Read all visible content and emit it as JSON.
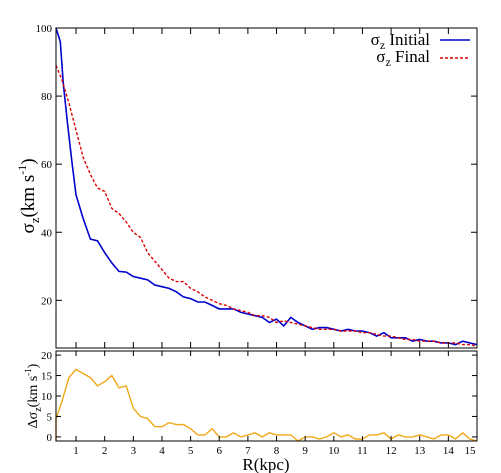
{
  "chart_data": [
    {
      "type": "line",
      "panel": "top",
      "ylabel_main": "σ",
      "ylabel_sub": "z",
      "ylabel_unit": "(km s",
      "ylabel_exp": "-1",
      "ylabel_close": ")",
      "xlim": [
        0.3,
        15
      ],
      "ylim": [
        6,
        100
      ],
      "yticks": [
        20,
        40,
        60,
        80,
        100
      ],
      "xticks": [
        1,
        2,
        3,
        4,
        5,
        6,
        7,
        8,
        9,
        10,
        11,
        12,
        13,
        14,
        15
      ],
      "legend_position": "top-right",
      "series": [
        {
          "name_main": "σ",
          "name_sub": "z",
          "name_rest": " Initial",
          "color": "#0000cc",
          "dash": "none",
          "x": [
            0.3,
            0.45,
            0.55,
            0.7,
            0.85,
            1.0,
            1.25,
            1.5,
            1.75,
            2.0,
            2.25,
            2.5,
            2.75,
            3.0,
            3.25,
            3.5,
            3.75,
            4.0,
            4.25,
            4.5,
            4.75,
            5.0,
            5.25,
            5.5,
            5.75,
            6.0,
            6.25,
            6.5,
            6.75,
            7.0,
            7.25,
            7.5,
            7.75,
            8.0,
            8.25,
            8.5,
            8.75,
            9.0,
            9.25,
            9.5,
            9.75,
            10.0,
            10.25,
            10.5,
            10.75,
            11.0,
            11.25,
            11.5,
            11.75,
            12.0,
            12.25,
            12.5,
            12.75,
            13.0,
            13.25,
            13.5,
            13.75,
            14.0,
            14.25,
            14.5,
            14.75,
            15.0
          ],
          "y": [
            100,
            96,
            84,
            72,
            61,
            51,
            44,
            38,
            37.5,
            34,
            31,
            28.5,
            28.3,
            27,
            26.5,
            26,
            24.5,
            24,
            23.5,
            22.5,
            21,
            20.5,
            19.5,
            19.5,
            18.5,
            17.5,
            17.5,
            17.5,
            16.5,
            16,
            15.5,
            15,
            13.5,
            14.5,
            12.5,
            15,
            13.5,
            12.5,
            11.5,
            12,
            12,
            11.5,
            11,
            11.5,
            11,
            11,
            10.5,
            9.5,
            10.5,
            9,
            9,
            9,
            8,
            8.5,
            8,
            8,
            7.5,
            7.5,
            7,
            8,
            7.5,
            7
          ]
        },
        {
          "name_main": "σ",
          "name_sub": "z",
          "name_rest": " Final",
          "color": "#dd0000",
          "dash": "3,2",
          "x": [
            0.3,
            0.5,
            0.75,
            1.0,
            1.25,
            1.5,
            1.75,
            2.0,
            2.25,
            2.5,
            2.75,
            3.0,
            3.25,
            3.5,
            3.75,
            4.0,
            4.25,
            4.5,
            4.75,
            5.0,
            5.25,
            5.5,
            5.75,
            6.0,
            6.25,
            6.5,
            6.75,
            7.0,
            7.25,
            7.5,
            7.75,
            8.0,
            8.25,
            8.5,
            8.75,
            9.0,
            9.25,
            9.5,
            9.75,
            10.0,
            10.25,
            10.5,
            10.75,
            11.0,
            11.25,
            11.5,
            11.75,
            12.0,
            12.25,
            12.5,
            12.75,
            13.0,
            13.25,
            13.5,
            13.75,
            14.0,
            14.25,
            14.5,
            14.75,
            15.0
          ],
          "y": [
            89,
            85,
            78,
            70,
            62,
            57,
            53,
            52,
            47,
            45.5,
            43,
            40,
            38.5,
            34,
            31.5,
            29,
            26.5,
            25.5,
            25.5,
            23.5,
            22.5,
            21,
            20,
            19,
            18.5,
            17.5,
            17,
            16.5,
            15.5,
            15.5,
            15,
            13.5,
            14,
            13.5,
            13,
            12.5,
            12,
            11.5,
            11.5,
            11.5,
            11,
            11,
            11,
            10.5,
            10.5,
            10,
            9.5,
            9.5,
            9,
            8.5,
            8.5,
            8,
            8,
            8,
            7.5,
            7.5,
            7.5,
            7,
            7,
            6.5
          ]
        }
      ]
    },
    {
      "type": "line",
      "panel": "bottom",
      "xlabel": "R(kpc)",
      "ylabel_main": "Δσ",
      "ylabel_sub": "z",
      "ylabel_unit": "(km s",
      "ylabel_exp": "-1",
      "ylabel_close": ")",
      "xlim": [
        0.3,
        15
      ],
      "ylim": [
        -1,
        21
      ],
      "yticks": [
        0,
        5,
        10,
        15,
        20
      ],
      "xticks": [
        1,
        2,
        3,
        4,
        5,
        6,
        7,
        8,
        9,
        10,
        11,
        12,
        13,
        14,
        15
      ],
      "xtick_labels": [
        "1",
        "2",
        "3",
        "4",
        "5",
        "6",
        "7",
        "8",
        "9",
        "10",
        "11",
        "12",
        "13",
        "14",
        "15"
      ],
      "series": [
        {
          "color": "#f0a818",
          "x": [
            0.3,
            0.3,
            0.5,
            0.75,
            1.0,
            1.25,
            1.5,
            1.75,
            2.0,
            2.25,
            2.5,
            2.75,
            3.0,
            3.25,
            3.5,
            3.75,
            4.0,
            4.25,
            4.5,
            4.75,
            5.0,
            5.25,
            5.5,
            5.75,
            6.0,
            6.25,
            6.5,
            6.75,
            7.0,
            7.25,
            7.5,
            7.75,
            8.0,
            8.25,
            8.5,
            8.75,
            9.0,
            9.25,
            9.5,
            9.75,
            10.0,
            10.25,
            10.5,
            10.75,
            11.0,
            11.25,
            11.5,
            11.75,
            12.0,
            12.25,
            12.5,
            12.75,
            13.0,
            13.25,
            13.5,
            13.75,
            14.0,
            14.25,
            14.5,
            14.75,
            15.0
          ],
          "y": [
            -1,
            4.5,
            8.5,
            14.5,
            16.5,
            15.5,
            14.5,
            12.5,
            13.5,
            15,
            12,
            12.5,
            7,
            5,
            4.5,
            2.5,
            2.5,
            3.5,
            3,
            3,
            2,
            0.5,
            0.5,
            2,
            0,
            0,
            1,
            0,
            0.5,
            1,
            0,
            1,
            0.5,
            0.5,
            0.5,
            -1,
            0,
            0,
            -0.5,
            0,
            1,
            0,
            0.5,
            -0.5,
            -0.5,
            0.5,
            0.5,
            1,
            -0.5,
            0.5,
            0,
            0,
            0.5,
            0,
            -0.5,
            0.5,
            0.5,
            -0.5,
            1,
            -0.5,
            -1
          ]
        }
      ]
    }
  ]
}
